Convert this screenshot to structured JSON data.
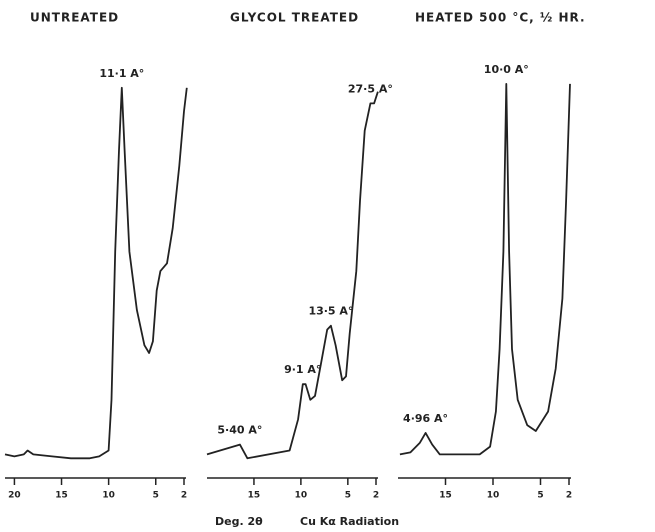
{
  "chart_data": [
    {
      "type": "line",
      "title": "UNTREATED",
      "xlim": [
        21,
        2
      ],
      "ylim": [
        0,
        100
      ],
      "xticks": [
        20,
        15,
        10,
        5,
        2
      ],
      "x": [
        21,
        20,
        19,
        18.6,
        18,
        16,
        14,
        12,
        11,
        10,
        9.7,
        9.3,
        8.9,
        8.6,
        8.3,
        7.8,
        7,
        6.2,
        5.7,
        5.3,
        4.9,
        4.5,
        3.8,
        3.2,
        2.5,
        2,
        1.7
      ],
      "values": [
        4,
        3.5,
        4,
        5,
        4,
        3.5,
        3,
        3,
        3.5,
        5,
        18,
        56,
        82,
        98,
        82,
        56,
        41,
        32,
        30,
        33,
        46,
        51,
        53,
        62,
        78,
        92,
        98
      ],
      "annotations": [
        {
          "text": "11·1 A°",
          "x": 8.6
        }
      ]
    },
    {
      "type": "line",
      "title": "GLYCOL  TREATED",
      "xlim": [
        20,
        2
      ],
      "ylim": [
        0,
        100
      ],
      "xticks": [
        15,
        10,
        5,
        2
      ],
      "x": [
        20,
        16.5,
        15.7,
        11.2,
        10.3,
        9.8,
        9.5,
        9,
        8.5,
        7.8,
        7.2,
        6.8,
        6.3,
        5.6,
        5.2,
        4.8,
        4.1,
        3.7,
        3.2,
        2.6,
        2.2,
        1.8
      ],
      "values": [
        4,
        6.5,
        3,
        5,
        13,
        22,
        22,
        18,
        19,
        28,
        36,
        37,
        32,
        23,
        24,
        35,
        51,
        69,
        87,
        94,
        94,
        97
      ],
      "annotations": [
        {
          "text": "5·40 A°",
          "x": 16.5
        },
        {
          "text": "9·1 A°",
          "x": 9.8
        },
        {
          "text": "13·5 A°",
          "x": 6.8
        },
        {
          "text": "27·5 A°",
          "x": 2.6
        }
      ]
    },
    {
      "type": "line",
      "title": "HEATED  500 °C, ½  HR.",
      "xlim": [
        20,
        2
      ],
      "ylim": [
        0,
        100
      ],
      "xticks": [
        15,
        10,
        5,
        2
      ],
      "x": [
        19.8,
        18.7,
        17.7,
        17.1,
        16.4,
        15.6,
        11.4,
        10.3,
        9.7,
        9.3,
        8.9,
        8.6,
        8.3,
        8,
        7.4,
        6.4,
        5.5,
        4.2,
        3.4,
        2.7,
        2.3,
        1.9
      ],
      "values": [
        4,
        4.5,
        7,
        9.5,
        6.5,
        4,
        4,
        6,
        15,
        31,
        56,
        99,
        56,
        31,
        18,
        11.5,
        10,
        15,
        26,
        44,
        69,
        99
      ],
      "annotations": [
        {
          "text": "4·96 A°",
          "x": 17.1
        },
        {
          "text": "10·0 A°",
          "x": 8.6
        }
      ]
    }
  ],
  "x_label": "Deg.  2θ",
  "radiation": "Cu Kα  Radiation"
}
